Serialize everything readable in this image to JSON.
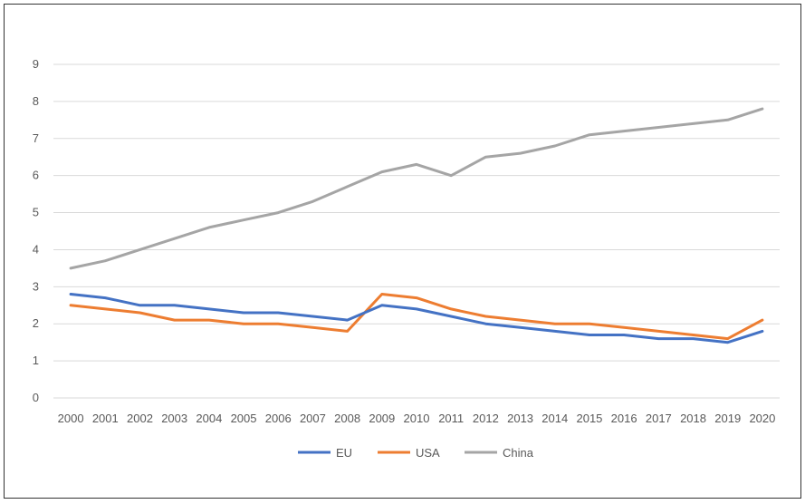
{
  "chart_data": {
    "type": "line",
    "title": "",
    "xlabel": "",
    "ylabel": "",
    "x": [
      "2000",
      "2001",
      "2002",
      "2003",
      "2004",
      "2005",
      "2006",
      "2007",
      "2008",
      "2009",
      "2010",
      "2011",
      "2012",
      "2013",
      "2014",
      "2015",
      "2016",
      "2017",
      "2018",
      "2019",
      "2020"
    ],
    "ylim": [
      0,
      9
    ],
    "yticks": [
      "0",
      "1",
      "2",
      "3",
      "4",
      "5",
      "6",
      "7",
      "8",
      "9"
    ],
    "grid": true,
    "legend": "bottom",
    "series": [
      {
        "name": "EU",
        "color": "#4472C4",
        "values": [
          2.8,
          2.7,
          2.5,
          2.5,
          2.4,
          2.3,
          2.3,
          2.2,
          2.1,
          2.5,
          2.4,
          2.2,
          2.0,
          1.9,
          1.8,
          1.7,
          1.7,
          1.6,
          1.6,
          1.5,
          1.8
        ]
      },
      {
        "name": "USA",
        "color": "#ED7D31",
        "values": [
          2.5,
          2.4,
          2.3,
          2.1,
          2.1,
          2.0,
          2.0,
          1.9,
          1.8,
          2.8,
          2.7,
          2.4,
          2.2,
          2.1,
          2.0,
          2.0,
          1.9,
          1.8,
          1.7,
          1.6,
          2.1
        ]
      },
      {
        "name": "China",
        "color": "#A5A5A5",
        "values": [
          3.5,
          3.7,
          4.0,
          4.3,
          4.6,
          4.8,
          5.0,
          5.3,
          5.7,
          6.1,
          6.3,
          6.0,
          6.5,
          6.6,
          6.8,
          7.1,
          7.2,
          7.3,
          7.4,
          7.5,
          7.8
        ]
      }
    ]
  }
}
